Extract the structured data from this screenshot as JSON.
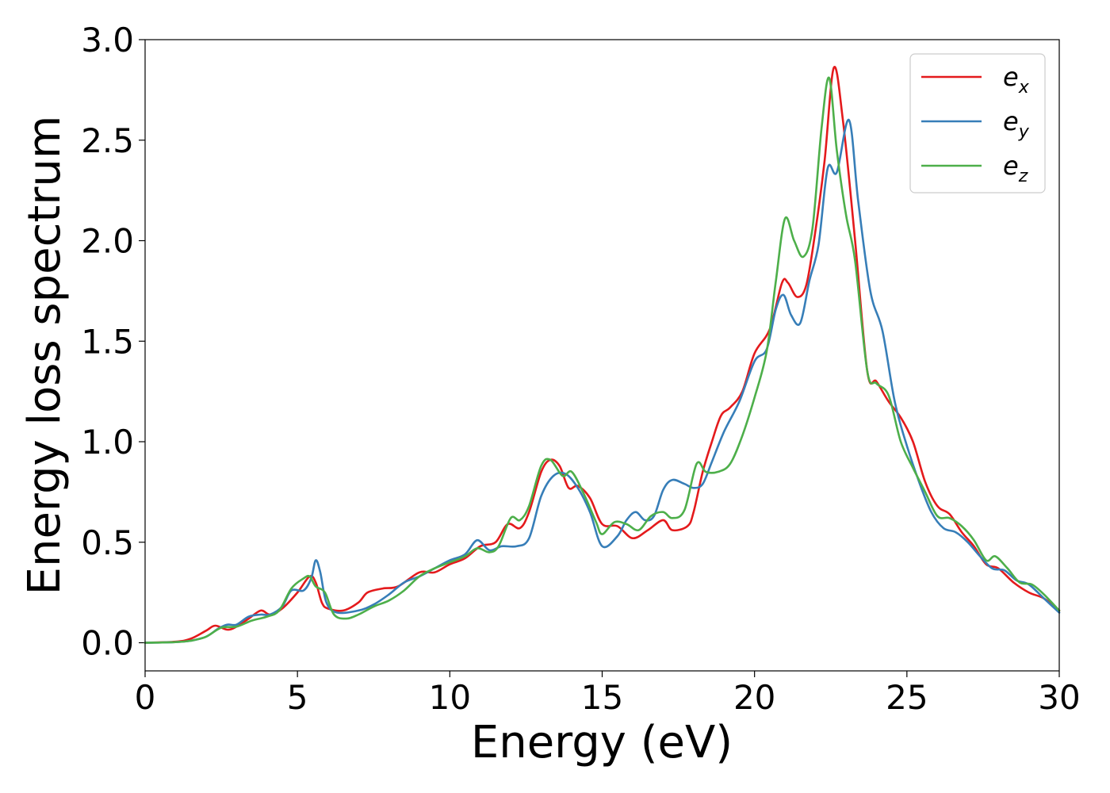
{
  "chart_data": {
    "type": "line",
    "xlabel": "Energy (eV)",
    "ylabel": "Energy loss spectrum",
    "xlim": [
      0,
      30
    ],
    "ylim": [
      -0.14,
      3.0
    ],
    "xticks": [
      "0",
      "5",
      "10",
      "15",
      "20",
      "25",
      "30"
    ],
    "yticks": [
      "0.0",
      "0.5",
      "1.0",
      "1.5",
      "2.0",
      "2.5",
      "3.0"
    ],
    "grid": false,
    "legend_position": "top-right",
    "series": [
      {
        "name": "e",
        "subscript": "x",
        "color": "#e41a1c",
        "points": [
          [
            0,
            0
          ],
          [
            1,
            0.005
          ],
          [
            1.5,
            0.02
          ],
          [
            2,
            0.06
          ],
          [
            2.3,
            0.085
          ],
          [
            2.7,
            0.065
          ],
          [
            3,
            0.08
          ],
          [
            3.4,
            0.12
          ],
          [
            3.8,
            0.16
          ],
          [
            4.1,
            0.14
          ],
          [
            4.5,
            0.17
          ],
          [
            5,
            0.25
          ],
          [
            5.4,
            0.33
          ],
          [
            5.6,
            0.3
          ],
          [
            5.8,
            0.2
          ],
          [
            6,
            0.17
          ],
          [
            6.5,
            0.16
          ],
          [
            7,
            0.2
          ],
          [
            7.3,
            0.25
          ],
          [
            7.8,
            0.27
          ],
          [
            8.3,
            0.28
          ],
          [
            9,
            0.35
          ],
          [
            9.5,
            0.35
          ],
          [
            10,
            0.39
          ],
          [
            10.5,
            0.42
          ],
          [
            11,
            0.48
          ],
          [
            11.5,
            0.5
          ],
          [
            11.9,
            0.59
          ],
          [
            12.3,
            0.57
          ],
          [
            12.6,
            0.65
          ],
          [
            13,
            0.85
          ],
          [
            13.3,
            0.91
          ],
          [
            13.6,
            0.88
          ],
          [
            13.9,
            0.77
          ],
          [
            14.2,
            0.78
          ],
          [
            14.6,
            0.72
          ],
          [
            15,
            0.59
          ],
          [
            15.5,
            0.58
          ],
          [
            16,
            0.52
          ],
          [
            16.5,
            0.56
          ],
          [
            17,
            0.61
          ],
          [
            17.3,
            0.56
          ],
          [
            17.8,
            0.58
          ],
          [
            18,
            0.65
          ],
          [
            18.3,
            0.85
          ],
          [
            18.6,
            1.0
          ],
          [
            18.9,
            1.13
          ],
          [
            19.2,
            1.17
          ],
          [
            19.6,
            1.25
          ],
          [
            20,
            1.44
          ],
          [
            20.5,
            1.56
          ],
          [
            20.9,
            1.79
          ],
          [
            21.1,
            1.79
          ],
          [
            21.4,
            1.72
          ],
          [
            21.7,
            1.78
          ],
          [
            22,
            2.05
          ],
          [
            22.3,
            2.4
          ],
          [
            22.6,
            2.86
          ],
          [
            22.9,
            2.6
          ],
          [
            23.3,
            2.0
          ],
          [
            23.7,
            1.35
          ],
          [
            24,
            1.3
          ],
          [
            24.4,
            1.2
          ],
          [
            24.8,
            1.12
          ],
          [
            25.2,
            1.0
          ],
          [
            25.6,
            0.8
          ],
          [
            26,
            0.68
          ],
          [
            26.4,
            0.64
          ],
          [
            26.8,
            0.55
          ],
          [
            27.2,
            0.48
          ],
          [
            27.6,
            0.39
          ],
          [
            28,
            0.37
          ],
          [
            28.5,
            0.3
          ],
          [
            29,
            0.25
          ],
          [
            29.5,
            0.22
          ],
          [
            30,
            0.16
          ]
        ]
      },
      {
        "name": "e",
        "subscript": "y",
        "color": "#377eb8",
        "points": [
          [
            0,
            0
          ],
          [
            1,
            0.003
          ],
          [
            1.5,
            0.01
          ],
          [
            2,
            0.03
          ],
          [
            2.4,
            0.07
          ],
          [
            2.7,
            0.09
          ],
          [
            3,
            0.09
          ],
          [
            3.4,
            0.13
          ],
          [
            3.8,
            0.14
          ],
          [
            4.1,
            0.14
          ],
          [
            4.5,
            0.18
          ],
          [
            4.8,
            0.26
          ],
          [
            5.2,
            0.26
          ],
          [
            5.45,
            0.32
          ],
          [
            5.6,
            0.41
          ],
          [
            5.75,
            0.35
          ],
          [
            5.95,
            0.2
          ],
          [
            6.3,
            0.15
          ],
          [
            7,
            0.16
          ],
          [
            7.5,
            0.19
          ],
          [
            8,
            0.24
          ],
          [
            8.5,
            0.3
          ],
          [
            9,
            0.33
          ],
          [
            9.5,
            0.37
          ],
          [
            10,
            0.41
          ],
          [
            10.5,
            0.44
          ],
          [
            10.9,
            0.51
          ],
          [
            11.3,
            0.46
          ],
          [
            11.7,
            0.48
          ],
          [
            12.2,
            0.48
          ],
          [
            12.6,
            0.52
          ],
          [
            13,
            0.73
          ],
          [
            13.4,
            0.83
          ],
          [
            13.8,
            0.84
          ],
          [
            14.2,
            0.77
          ],
          [
            14.6,
            0.65
          ],
          [
            15,
            0.48
          ],
          [
            15.5,
            0.53
          ],
          [
            15.8,
            0.61
          ],
          [
            16.1,
            0.65
          ],
          [
            16.4,
            0.61
          ],
          [
            16.7,
            0.63
          ],
          [
            17,
            0.76
          ],
          [
            17.3,
            0.81
          ],
          [
            17.7,
            0.79
          ],
          [
            18,
            0.77
          ],
          [
            18.3,
            0.79
          ],
          [
            18.6,
            0.9
          ],
          [
            19,
            1.05
          ],
          [
            19.5,
            1.2
          ],
          [
            20,
            1.4
          ],
          [
            20.4,
            1.46
          ],
          [
            20.7,
            1.66
          ],
          [
            20.95,
            1.73
          ],
          [
            21.2,
            1.63
          ],
          [
            21.5,
            1.59
          ],
          [
            21.8,
            1.8
          ],
          [
            22.1,
            1.98
          ],
          [
            22.4,
            2.36
          ],
          [
            22.7,
            2.34
          ],
          [
            23.1,
            2.6
          ],
          [
            23.4,
            2.2
          ],
          [
            23.8,
            1.75
          ],
          [
            24.2,
            1.55
          ],
          [
            24.6,
            1.2
          ],
          [
            25,
            0.98
          ],
          [
            25.4,
            0.8
          ],
          [
            25.8,
            0.65
          ],
          [
            26.2,
            0.57
          ],
          [
            26.6,
            0.55
          ],
          [
            27,
            0.5
          ],
          [
            27.4,
            0.43
          ],
          [
            27.8,
            0.37
          ],
          [
            28.2,
            0.36
          ],
          [
            28.6,
            0.31
          ],
          [
            29,
            0.29
          ],
          [
            29.5,
            0.22
          ],
          [
            30,
            0.15
          ]
        ]
      },
      {
        "name": "e",
        "subscript": "z",
        "color": "#4daf4a",
        "points": [
          [
            0,
            0
          ],
          [
            1,
            0.003
          ],
          [
            1.5,
            0.01
          ],
          [
            2,
            0.03
          ],
          [
            2.5,
            0.075
          ],
          [
            3,
            0.08
          ],
          [
            3.5,
            0.11
          ],
          [
            4,
            0.13
          ],
          [
            4.4,
            0.16
          ],
          [
            4.8,
            0.27
          ],
          [
            5.2,
            0.32
          ],
          [
            5.4,
            0.33
          ],
          [
            5.6,
            0.28
          ],
          [
            5.9,
            0.25
          ],
          [
            6.2,
            0.14
          ],
          [
            6.6,
            0.12
          ],
          [
            7,
            0.14
          ],
          [
            7.5,
            0.18
          ],
          [
            8,
            0.21
          ],
          [
            8.5,
            0.26
          ],
          [
            9,
            0.33
          ],
          [
            9.5,
            0.37
          ],
          [
            10,
            0.4
          ],
          [
            10.5,
            0.43
          ],
          [
            10.9,
            0.47
          ],
          [
            11.3,
            0.45
          ],
          [
            11.6,
            0.48
          ],
          [
            12,
            0.62
          ],
          [
            12.3,
            0.61
          ],
          [
            12.6,
            0.68
          ],
          [
            13,
            0.88
          ],
          [
            13.3,
            0.91
          ],
          [
            13.7,
            0.83
          ],
          [
            14,
            0.85
          ],
          [
            14.4,
            0.74
          ],
          [
            14.8,
            0.6
          ],
          [
            15,
            0.54
          ],
          [
            15.4,
            0.6
          ],
          [
            15.8,
            0.59
          ],
          [
            16.2,
            0.56
          ],
          [
            16.6,
            0.63
          ],
          [
            17,
            0.65
          ],
          [
            17.3,
            0.62
          ],
          [
            17.7,
            0.66
          ],
          [
            18.1,
            0.89
          ],
          [
            18.4,
            0.85
          ],
          [
            18.8,
            0.85
          ],
          [
            19.2,
            0.89
          ],
          [
            19.6,
            1.03
          ],
          [
            20,
            1.22
          ],
          [
            20.4,
            1.45
          ],
          [
            20.7,
            1.8
          ],
          [
            21,
            2.11
          ],
          [
            21.3,
            2.0
          ],
          [
            21.6,
            1.92
          ],
          [
            21.9,
            2.06
          ],
          [
            22.2,
            2.56
          ],
          [
            22.45,
            2.81
          ],
          [
            22.7,
            2.45
          ],
          [
            23,
            2.13
          ],
          [
            23.3,
            1.9
          ],
          [
            23.7,
            1.35
          ],
          [
            24,
            1.29
          ],
          [
            24.4,
            1.23
          ],
          [
            24.8,
            1.0
          ],
          [
            25.2,
            0.87
          ],
          [
            25.6,
            0.75
          ],
          [
            26,
            0.63
          ],
          [
            26.4,
            0.62
          ],
          [
            26.8,
            0.58
          ],
          [
            27.2,
            0.51
          ],
          [
            27.6,
            0.41
          ],
          [
            27.9,
            0.43
          ],
          [
            28.3,
            0.37
          ],
          [
            28.7,
            0.3
          ],
          [
            29.1,
            0.29
          ],
          [
            29.5,
            0.24
          ],
          [
            30,
            0.16
          ]
        ]
      }
    ]
  }
}
